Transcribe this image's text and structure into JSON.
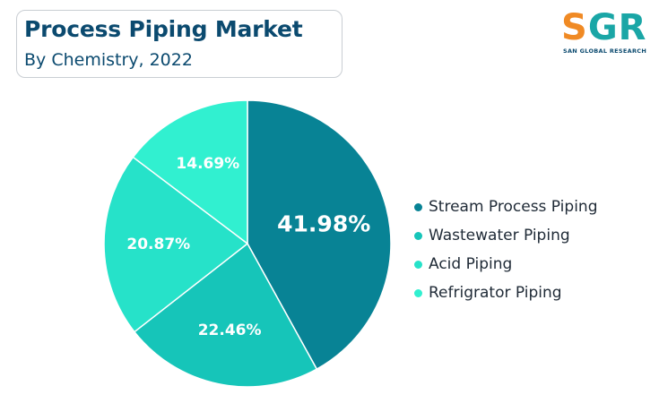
{
  "header": {
    "title": "Process Piping Market",
    "subtitle": "By Chemistry, 2022"
  },
  "logo": {
    "letters": [
      "S",
      "G",
      "R"
    ],
    "tagline": "SAN GLOBAL RESEARCH"
  },
  "chart_data": {
    "type": "pie",
    "title": "Process Piping Market",
    "subtitle": "By Chemistry, 2022",
    "legend_position": "right",
    "categories": [
      "Stream Process Piping",
      "Wastewater Piping",
      "Acid Piping",
      "Refrigrator Piping"
    ],
    "values": [
      41.98,
      22.46,
      20.87,
      14.69
    ],
    "labels": [
      "41.98%",
      "22.46%",
      "20.87%",
      "14.69%"
    ],
    "colors": [
      "#088395",
      "#16c5b9",
      "#26e2c9",
      "#31f0d0"
    ]
  }
}
